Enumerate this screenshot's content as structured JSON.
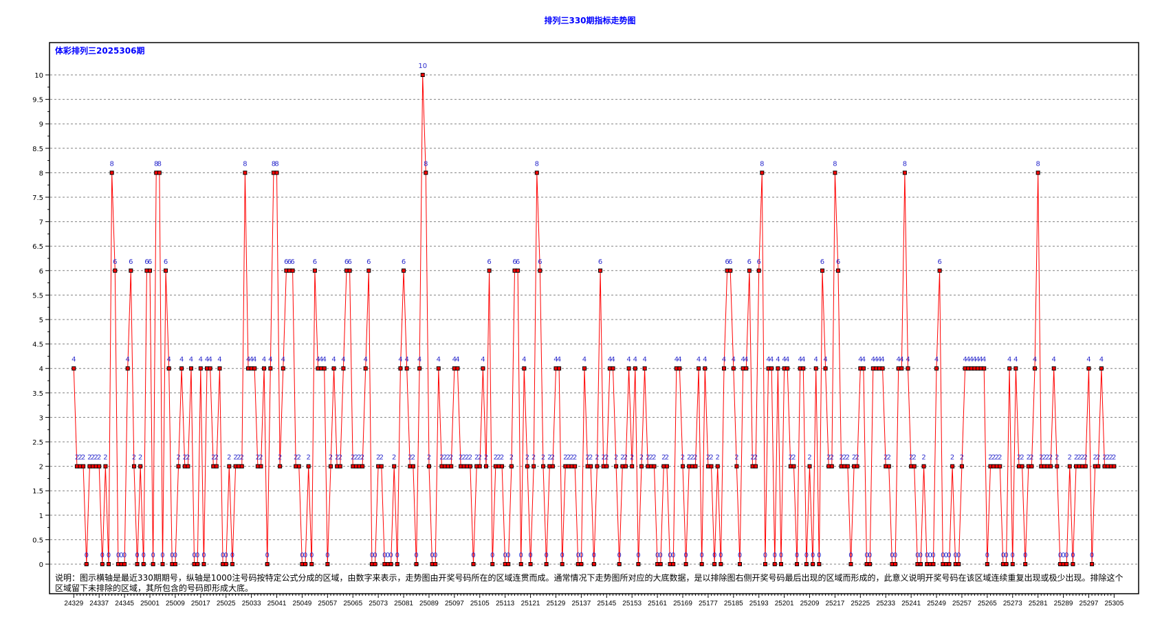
{
  "chart_data": {
    "type": "line",
    "title": "排列三330期指标走势图",
    "subtitle": "体彩排列三2025306期",
    "note": "说明：图示横轴是最近330期期号，纵轴是1000注号码按特定公式分成的区域，由数字来表示，走势图由开奖号码所在的区域连贯而成。通常情况下走势图所对应的大底数据，是以排除图右侧开奖号码最后出现的区域而形成的，此意义说明开奖号码在该区域连续重复出现或极少出现。排除这个区域留下未排除的区域，其所包含的号码即形成大底。",
    "ylim": [
      0,
      10
    ],
    "yticks": [
      "0",
      "0.5",
      "1",
      "1.5",
      "2",
      "2.5",
      "3",
      "3.5",
      "4",
      "4.5",
      "5",
      "5.5",
      "6",
      "6.5",
      "7",
      "7.5",
      "8",
      "8.5",
      "9",
      "9.5",
      "10"
    ],
    "xtick_labels": [
      "24329",
      "24337",
      "24345",
      "25001",
      "25009",
      "25017",
      "25025",
      "25033",
      "25041",
      "25049",
      "25057",
      "25065",
      "25073",
      "25081",
      "25089",
      "25097",
      "25105",
      "25113",
      "25121",
      "25129",
      "25137",
      "25145",
      "25153",
      "25161",
      "25169",
      "25177",
      "25185",
      "25193",
      "25201",
      "25209",
      "25217",
      "25225",
      "25233",
      "25241",
      "25249",
      "25257",
      "25265",
      "25273",
      "25281",
      "25289",
      "25297",
      "25305"
    ],
    "grid": true,
    "series_color": "#ff0000",
    "label_color": "#2a2acc",
    "values": [
      4,
      2,
      2,
      2,
      0,
      2,
      2,
      2,
      2,
      0,
      2,
      0,
      8,
      6,
      0,
      0,
      0,
      4,
      6,
      2,
      0,
      2,
      0,
      6,
      6,
      0,
      8,
      8,
      0,
      6,
      4,
      0,
      0,
      2,
      4,
      2,
      2,
      4,
      0,
      0,
      4,
      0,
      4,
      4,
      2,
      2,
      4,
      0,
      0,
      2,
      0,
      2,
      2,
      2,
      8,
      4,
      4,
      4,
      2,
      2,
      4,
      0,
      4,
      8,
      8,
      2,
      4,
      6,
      6,
      6,
      2,
      2,
      0,
      0,
      2,
      0,
      6,
      4,
      4,
      4,
      0,
      2,
      4,
      2,
      2,
      4,
      6,
      6,
      2,
      2,
      2,
      2,
      4,
      6,
      0,
      0,
      2,
      2,
      0,
      0,
      0,
      2,
      0,
      4,
      6,
      4,
      2,
      2,
      0,
      4,
      10,
      8,
      2,
      0,
      0,
      4,
      2,
      2,
      2,
      2,
      4,
      4,
      2,
      2,
      2,
      2,
      0,
      2,
      2,
      4,
      2,
      6,
      0,
      2,
      2,
      2,
      0,
      0,
      2,
      6,
      6,
      0,
      4,
      2,
      0,
      2,
      8,
      6,
      2,
      0,
      2,
      2,
      4,
      4,
      0,
      2,
      2,
      2,
      2,
      0,
      0,
      4,
      2,
      2,
      0,
      2,
      6,
      2,
      2,
      4,
      4,
      2,
      0,
      2,
      2,
      4,
      2,
      4,
      0,
      2,
      4,
      2,
      2,
      2,
      0,
      0,
      2,
      2,
      0,
      0,
      4,
      4,
      2,
      0,
      2,
      2,
      2,
      4,
      0,
      4,
      2,
      2,
      0,
      2,
      0,
      4,
      6,
      6,
      4,
      2,
      0,
      4,
      4,
      6,
      2,
      2,
      6,
      8,
      0,
      4,
      4,
      0,
      4,
      0,
      4,
      4,
      2,
      2,
      0,
      4,
      4,
      0,
      2,
      0,
      4,
      0,
      6,
      4,
      2,
      2,
      8,
      6,
      2,
      2,
      2,
      0,
      2,
      2,
      4,
      4,
      0,
      0,
      4,
      4,
      4,
      4,
      2,
      2,
      0,
      0,
      4,
      4,
      8,
      4,
      2,
      2,
      0,
      0,
      2,
      0,
      0,
      0,
      4,
      6,
      0,
      0,
      0,
      2,
      0,
      0,
      2,
      4,
      4,
      4,
      4,
      4,
      4,
      4,
      0,
      2,
      2,
      2,
      2,
      0,
      0,
      4,
      0,
      4,
      2,
      2,
      0,
      2,
      2,
      4,
      8,
      2,
      2,
      2,
      2,
      4,
      2,
      0,
      0,
      0,
      2,
      0,
      2,
      2,
      2,
      2,
      4,
      0,
      2,
      2,
      4,
      2,
      2,
      2,
      2
    ]
  }
}
